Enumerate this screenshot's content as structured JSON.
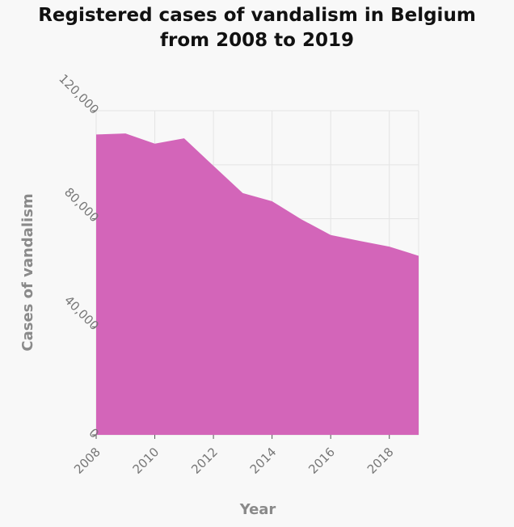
{
  "chart_data": {
    "type": "area",
    "title_lines": [
      "Registered cases of vandalism in Belgium",
      "from 2008 to 2019"
    ],
    "xlabel": "Year",
    "ylabel": "Cases of vandalism",
    "x": [
      2008,
      2009,
      2010,
      2011,
      2012,
      2013,
      2014,
      2015,
      2016,
      2017,
      2018,
      2019
    ],
    "values": [
      111200,
      111600,
      107800,
      109800,
      99600,
      89500,
      86500,
      79800,
      74000,
      71800,
      69700,
      66300
    ],
    "xlim": [
      2008,
      2019
    ],
    "ylim": [
      0,
      120000
    ],
    "x_ticks": [
      2008,
      2010,
      2012,
      2014,
      2016,
      2018
    ],
    "x_tick_labels": [
      "2008",
      "2010",
      "2012",
      "2014",
      "2016",
      "2018"
    ],
    "y_ticks": [
      0,
      40000,
      80000,
      120000
    ],
    "y_tick_labels": [
      "0",
      "40,000",
      "80,000",
      "120,000"
    ],
    "grid": true,
    "legend": "none",
    "colors": {
      "area": "#d365b9",
      "grid": "#e4e4e4",
      "background": "#f8f8f8"
    }
  }
}
